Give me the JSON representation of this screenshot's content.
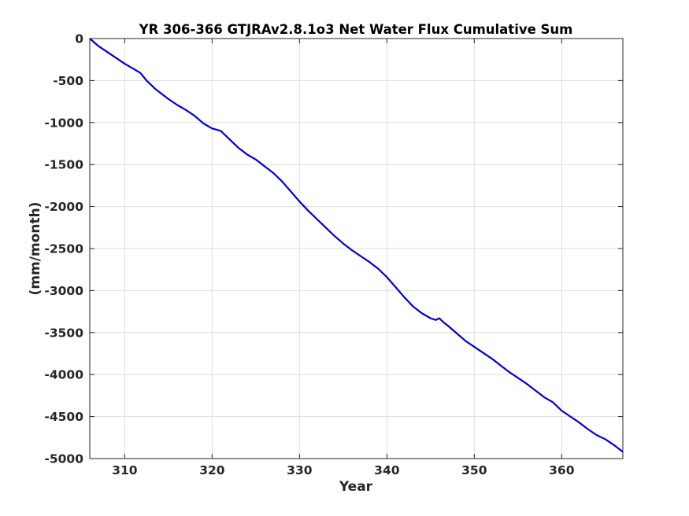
{
  "chart_data": {
    "type": "line",
    "title": "YR 306-366 GTJRAv2.8.1o3 Net Water Flux Cumulative Sum",
    "xlabel": "Year",
    "ylabel": "(mm/month)",
    "xlim": [
      306,
      367
    ],
    "ylim": [
      -5000,
      0
    ],
    "xticks": [
      310,
      320,
      330,
      340,
      350,
      360
    ],
    "yticks": [
      0,
      -500,
      -1000,
      -1500,
      -2000,
      -2500,
      -3000,
      -3500,
      -4000,
      -4500,
      -5000
    ],
    "grid": true,
    "legend": "none",
    "series": [
      {
        "color": "#0000d6",
        "x": [
          306,
          307,
          308,
          309,
          310,
          311,
          311.8,
          312.5,
          313.5,
          315,
          316,
          317,
          318,
          319,
          320,
          321,
          322,
          323,
          324,
          325,
          326,
          327,
          328,
          329,
          330,
          331,
          332,
          333,
          334,
          335,
          336,
          337,
          338,
          339,
          340,
          341,
          342,
          343,
          344,
          345,
          345.6,
          346,
          346.5,
          347,
          348,
          349,
          350,
          351,
          352,
          353,
          354,
          355,
          356,
          357,
          358,
          359,
          360,
          361,
          362,
          363,
          364,
          365,
          366,
          367
        ],
        "values": [
          0,
          -90,
          -160,
          -230,
          -300,
          -360,
          -410,
          -500,
          -600,
          -720,
          -790,
          -850,
          -920,
          -1010,
          -1070,
          -1100,
          -1200,
          -1300,
          -1380,
          -1440,
          -1520,
          -1600,
          -1700,
          -1820,
          -1940,
          -2050,
          -2150,
          -2250,
          -2350,
          -2440,
          -2520,
          -2590,
          -2660,
          -2740,
          -2840,
          -2960,
          -3080,
          -3190,
          -3270,
          -3330,
          -3350,
          -3330,
          -3380,
          -3420,
          -3510,
          -3600,
          -3670,
          -3740,
          -3810,
          -3890,
          -3970,
          -4040,
          -4110,
          -4190,
          -4270,
          -4330,
          -4430,
          -4500,
          -4570,
          -4650,
          -4720,
          -4770,
          -4840,
          -4920
        ]
      }
    ]
  }
}
